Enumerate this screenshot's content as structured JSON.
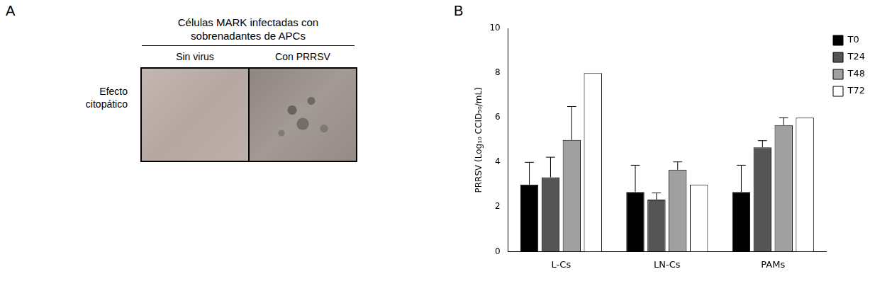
{
  "panel_a": {
    "letter": "A",
    "header": "Células MARK infectadas con sobrenadantes de APCs",
    "columns": [
      "Sin virus",
      "Con PRRSV"
    ],
    "row_label": "Efecto citopático"
  },
  "panel_b": {
    "letter": "B"
  },
  "chart_data": {
    "type": "bar",
    "y_label": "PRRSV (Log₁₀ CCID₅₀/mL)",
    "categories": [
      "L-Cs",
      "LN-Cs",
      "PAMs"
    ],
    "series": [
      {
        "name": "T0",
        "color": "#000000",
        "values": [
          3,
          2.67,
          2.67
        ],
        "errors": [
          1,
          1.2,
          1.2
        ]
      },
      {
        "name": "T24",
        "color": "#555555",
        "values": [
          3.33,
          2.33,
          4.67
        ],
        "errors": [
          0.9,
          0.3,
          0.3
        ]
      },
      {
        "name": "T48",
        "color": "#a0a0a0",
        "values": [
          5,
          3.67,
          5.67
        ],
        "errors": [
          1.5,
          0.35,
          0.33
        ]
      },
      {
        "name": "T72",
        "color": "#ffffff",
        "values": [
          8,
          3,
          6
        ],
        "errors": [
          null,
          null,
          null
        ]
      }
    ],
    "ylim": [
      0,
      10
    ],
    "yticks": [
      0,
      2,
      4,
      6,
      8,
      10
    ],
    "grid": false,
    "legend": "right"
  }
}
